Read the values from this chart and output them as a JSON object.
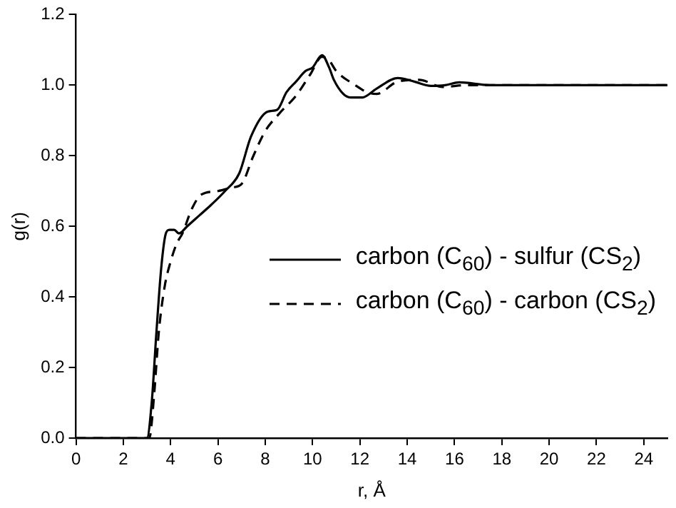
{
  "chart_data": {
    "type": "line",
    "xlabel": "r, Å",
    "ylabel": "g(r)",
    "xlim": [
      0,
      25
    ],
    "xticks": [
      0,
      2,
      4,
      6,
      8,
      10,
      12,
      14,
      16,
      18,
      20,
      22,
      24
    ],
    "ylim": [
      0,
      1.2
    ],
    "yticks": [
      {
        "value": 0,
        "label": "0.0"
      },
      {
        "value": 0.2,
        "label": "0.2"
      },
      {
        "value": 0.4,
        "label": "0.4"
      },
      {
        "value": 0.6,
        "label": "0.6"
      },
      {
        "value": 0.8,
        "label": "0.8"
      },
      {
        "value": 1.0,
        "label": "1.0"
      },
      {
        "value": 1.2,
        "label": "1.2"
      }
    ],
    "grid": false,
    "legend": "right",
    "marker": "none",
    "series": [
      {
        "name": "carbon (C$_{60}$) - sulfur (CS$_{2}$)",
        "color": "#000000",
        "line_style": "solid",
        "x": [
          0,
          3.0,
          3.2,
          3.4,
          3.6,
          3.8,
          3.95,
          4.15,
          4.35,
          4.7,
          5.2,
          5.7,
          6.3,
          6.9,
          7.4,
          8.1,
          8.5,
          8.9,
          9.3,
          9.7,
          10.0,
          10.4,
          10.7,
          10.9,
          11.3,
          11.6,
          12.1,
          12.7,
          13.6,
          14.3,
          15.0,
          15.6,
          16.2,
          17.5,
          20,
          25
        ],
        "values": [
          0,
          0,
          0.1,
          0.3,
          0.48,
          0.58,
          0.59,
          0.59,
          0.58,
          0.6,
          0.63,
          0.66,
          0.7,
          0.75,
          0.855,
          0.925,
          0.93,
          0.98,
          1.01,
          1.04,
          1.05,
          1.085,
          1.05,
          1.015,
          0.975,
          0.965,
          0.965,
          0.99,
          1.02,
          1.01,
          0.998,
          1.0,
          1.008,
          1.0,
          1.0,
          1.0
        ]
      },
      {
        "name": "carbon (C$_{60}$) - carbon (CS$_{2}$)",
        "color": "#000000",
        "line_style": "dashed",
        "x": [
          0,
          3.1,
          3.3,
          3.5,
          3.75,
          4.0,
          4.25,
          4.5,
          4.9,
          5.3,
          6.0,
          6.6,
          7.0,
          7.5,
          8.0,
          8.6,
          9.3,
          9.9,
          10.4,
          10.7,
          11.0,
          11.8,
          12.3,
          12.7,
          13.6,
          14.5,
          15.5,
          16.5,
          20,
          25
        ],
        "values": [
          0,
          0,
          0.12,
          0.3,
          0.43,
          0.5,
          0.55,
          0.58,
          0.65,
          0.69,
          0.7,
          0.71,
          0.72,
          0.8,
          0.87,
          0.92,
          0.97,
          1.03,
          1.08,
          1.07,
          1.04,
          1.0,
          0.98,
          0.975,
          1.01,
          1.015,
          0.995,
          1.0,
          1.0,
          1.0
        ]
      }
    ]
  }
}
